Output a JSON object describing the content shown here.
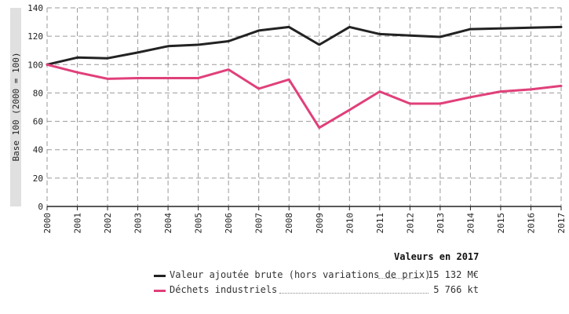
{
  "chart_data": {
    "type": "line",
    "ylabel": "Base 100 (2000 = 100)",
    "xlabel": "",
    "ylim": [
      0,
      140
    ],
    "yticks": [
      0,
      20,
      40,
      60,
      80,
      100,
      120,
      140
    ],
    "grid": true,
    "categories": [
      "2000",
      "2001",
      "2002",
      "2003",
      "2004",
      "2005",
      "2006",
      "2007",
      "2008",
      "2009",
      "2010",
      "2011",
      "2012",
      "2013",
      "2014",
      "2015",
      "2016",
      "2017"
    ],
    "series": [
      {
        "name": "Valeur ajoutée brute (hors variations de prix)",
        "color": "#222222",
        "values": [
          100,
          105,
          104.5,
          108.5,
          113,
          114,
          116.5,
          124,
          126.5,
          114,
          126.5,
          121.5,
          120.5,
          119.5,
          125,
          125.5,
          126,
          126.5
        ]
      },
      {
        "name": "Déchets industriels",
        "color": "#e0407a",
        "values": [
          100,
          94.5,
          90,
          90.5,
          90.5,
          90.5,
          96.5,
          83,
          89.5,
          55.5,
          68,
          81,
          72.5,
          72.5,
          77,
          81,
          82.5,
          85
        ]
      }
    ]
  },
  "legend": {
    "title": "Valeurs en 2017",
    "items": [
      {
        "label": "Valeur ajoutée brute (hors variations de prix)",
        "value": "15 132 M€"
      },
      {
        "label": "Déchets industriels",
        "value": "5 766 kt"
      }
    ]
  }
}
